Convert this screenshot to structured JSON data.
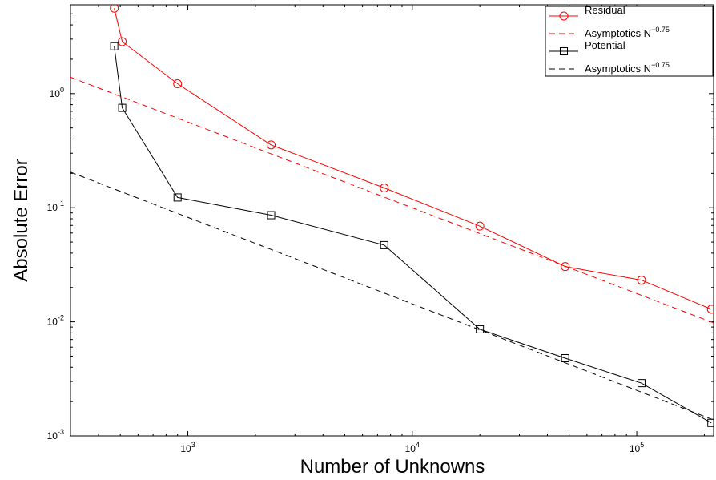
{
  "chart_data": {
    "type": "line",
    "xlabel": "Number of Unknowns",
    "ylabel": "Absolute Error",
    "xscale": "log",
    "yscale": "log",
    "xlim": [
      300,
      220000
    ],
    "ylim": [
      0.001,
      6
    ],
    "grid": false,
    "legend_position": "top-right",
    "x_ticks": [
      {
        "base": "10",
        "exp": "3",
        "value": 1000
      },
      {
        "base": "10",
        "exp": "4",
        "value": 10000
      },
      {
        "base": "10",
        "exp": "5",
        "value": 100000
      }
    ],
    "y_ticks": [
      {
        "base": "10",
        "exp": "0",
        "value": 1
      },
      {
        "base": "10",
        "exp": "-1",
        "value": 0.1
      },
      {
        "base": "10",
        "exp": "-2",
        "value": 0.01
      },
      {
        "base": "10",
        "exp": "-3",
        "value": 0.001
      }
    ],
    "series": [
      {
        "name": "Residual",
        "color": "#ff0000",
        "marker": "circle",
        "dash": "solid",
        "x": [
          470,
          510,
          900,
          2350,
          7500,
          20000,
          48000,
          105000,
          215000
        ],
        "y": [
          5.6,
          2.85,
          1.22,
          0.355,
          0.149,
          0.069,
          0.0305,
          0.0232,
          0.0129
        ]
      },
      {
        "name": "Asymptotics N",
        "name_exp": "−0.75",
        "color": "#ff0000",
        "marker": "none",
        "dash": "dashed",
        "x": [
          300,
          220000
        ],
        "y": [
          1.39,
          0.0098
        ]
      },
      {
        "name": "Potential",
        "color": "#000000",
        "marker": "square",
        "dash": "solid",
        "x": [
          470,
          510,
          900,
          2350,
          7500,
          20000,
          48000,
          105000,
          215000
        ],
        "y": [
          2.6,
          0.75,
          0.123,
          0.086,
          0.047,
          0.0086,
          0.0048,
          0.0029,
          0.0013
        ]
      },
      {
        "name": "Asymptotics N",
        "name_exp": "−0.75",
        "color": "#000000",
        "marker": "none",
        "dash": "dashed",
        "x": [
          300,
          220000
        ],
        "y": [
          0.205,
          0.00138
        ]
      }
    ]
  }
}
